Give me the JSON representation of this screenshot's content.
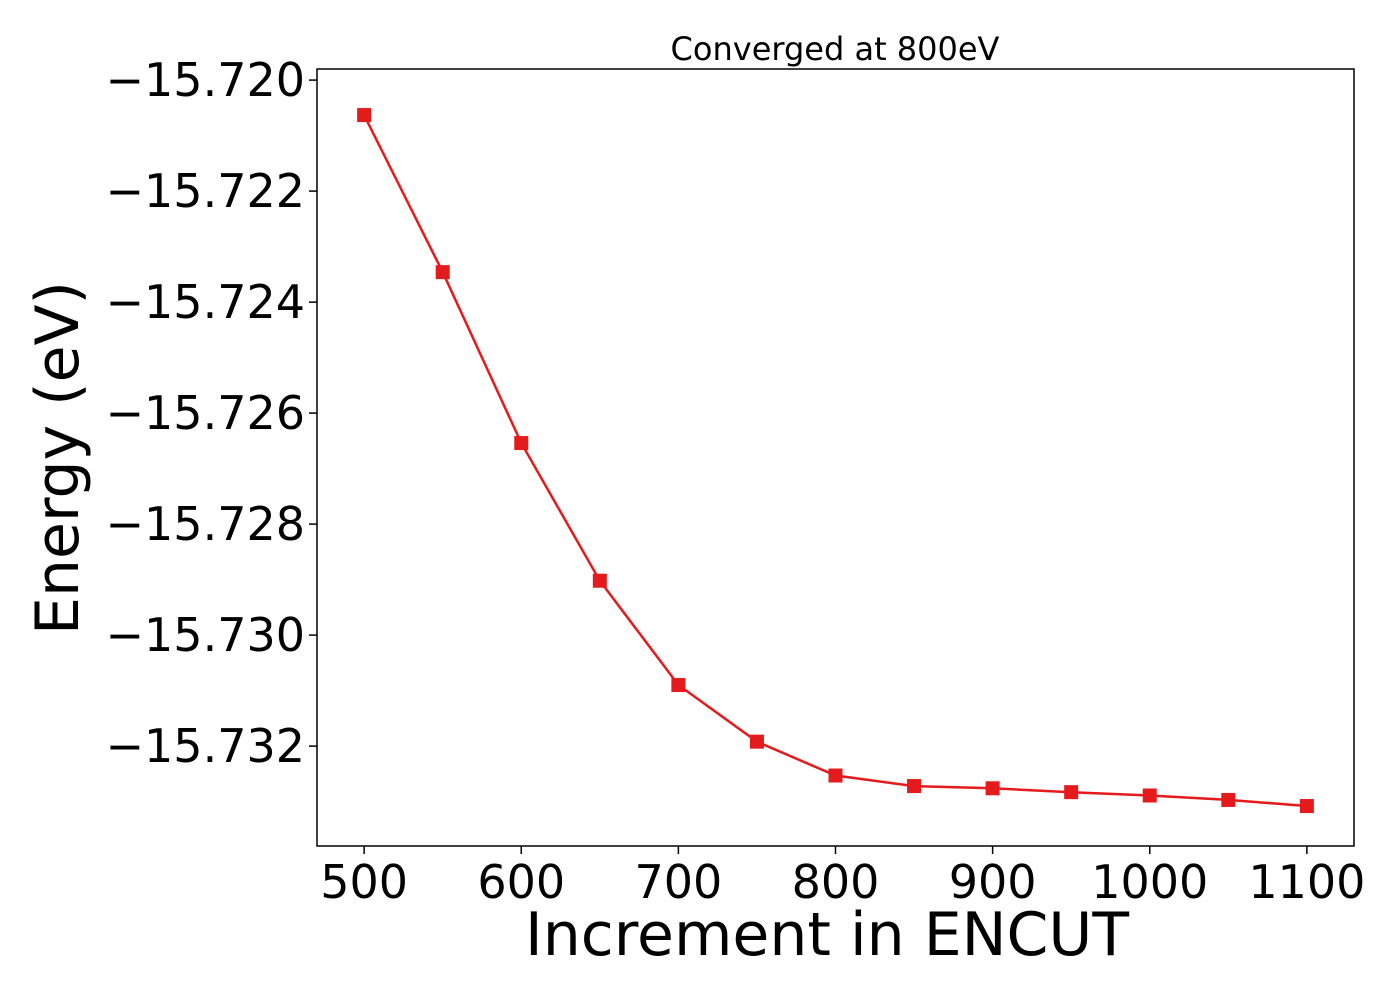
{
  "chart_data": {
    "type": "line",
    "title": "Converged at 800eV",
    "xlabel": "Increment in ENCUT",
    "ylabel": "Energy (eV)",
    "xlim": [
      470,
      1130
    ],
    "ylim": [
      -15.7338,
      -15.7198
    ],
    "x_ticks": [
      500,
      600,
      700,
      800,
      900,
      1000,
      1100
    ],
    "x_tick_labels": [
      "500",
      "600",
      "700",
      "800",
      "900",
      "1000",
      "1100"
    ],
    "y_ticks": [
      -15.72,
      -15.722,
      -15.724,
      -15.726,
      -15.728,
      -15.73,
      -15.732
    ],
    "y_tick_labels": [
      "−15.720",
      "−15.722",
      "−15.724",
      "−15.726",
      "−15.728",
      "−15.730",
      "−15.732"
    ],
    "grid": false,
    "series": [
      {
        "color": "#e41a1c",
        "marker": "square",
        "x": [
          500,
          550,
          600,
          650,
          700,
          750,
          800,
          850,
          900,
          950,
          1000,
          1050,
          1100
        ],
        "y": [
          -15.72063,
          -15.72346,
          -15.72654,
          -15.72902,
          -15.7309,
          -15.73192,
          -15.73253,
          -15.73272,
          -15.73276,
          -15.73283,
          -15.73289,
          -15.73297,
          -15.73308
        ]
      }
    ]
  }
}
